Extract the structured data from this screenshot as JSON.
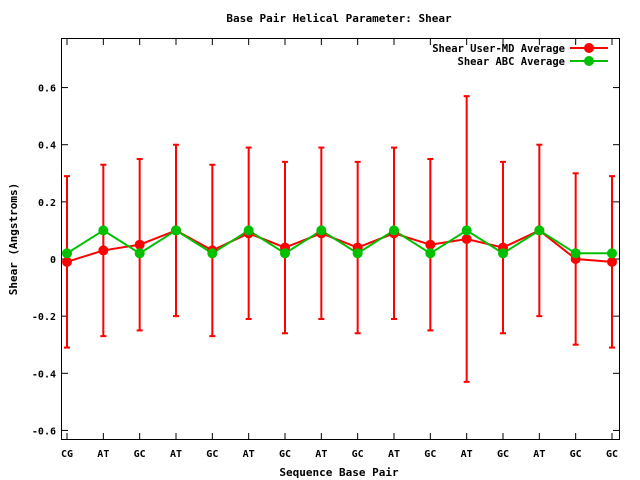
{
  "chart_data": {
    "type": "line",
    "title": "Base Pair Helical Parameter: Shear",
    "xlabel": "Sequence Base Pair",
    "ylabel": "Shear (Angstroms)",
    "categories": [
      "CG",
      "AT",
      "GC",
      "AT",
      "GC",
      "AT",
      "GC",
      "AT",
      "GC",
      "AT",
      "GC",
      "AT",
      "GC",
      "AT",
      "GC",
      "GC"
    ],
    "ylim": [
      -0.63,
      0.77
    ],
    "yticks": [
      -0.6,
      -0.4,
      -0.2,
      0,
      0.2,
      0.4,
      0.6
    ],
    "ytick_labels": [
      "-0.6",
      "-0.4",
      "-0.2",
      "0",
      "0.2",
      "0.4",
      "0.6"
    ],
    "legend_position": "top-right",
    "grid": false,
    "series": [
      {
        "name": "Shear User-MD Average",
        "color": "#ff0000",
        "values": [
          -0.01,
          0.03,
          0.05,
          0.1,
          0.03,
          0.09,
          0.04,
          0.09,
          0.04,
          0.09,
          0.05,
          0.07,
          0.04,
          0.1,
          0.0,
          -0.01
        ],
        "err_upper": [
          0.29,
          0.33,
          0.35,
          0.4,
          0.33,
          0.39,
          0.34,
          0.39,
          0.34,
          0.39,
          0.35,
          0.57,
          0.34,
          0.4,
          0.3,
          0.29
        ],
        "err_lower": [
          -0.31,
          -0.27,
          -0.25,
          -0.2,
          -0.27,
          -0.21,
          -0.26,
          -0.21,
          -0.26,
          -0.21,
          -0.25,
          -0.43,
          -0.26,
          -0.2,
          -0.3,
          -0.31
        ]
      },
      {
        "name": "Shear ABC Average",
        "color": "#00c000",
        "values": [
          0.02,
          0.1,
          0.02,
          0.1,
          0.02,
          0.1,
          0.02,
          0.1,
          0.02,
          0.1,
          0.02,
          0.1,
          0.02,
          0.1,
          0.02,
          0.02
        ]
      }
    ]
  }
}
